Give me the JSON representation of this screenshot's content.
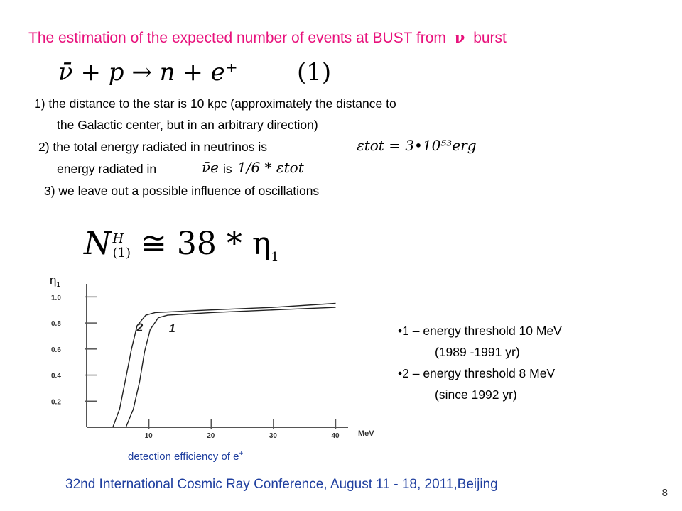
{
  "title": {
    "before": "The estimation of the expected number of events  at BUST from",
    "nu_symbol": "ν",
    "after": "burst"
  },
  "reaction": {
    "formula": "ν̄ + p → n + e⁺",
    "number": "(1)"
  },
  "conditions": {
    "c1_line1": "1) the distance to the star is 10 kpc (approximately the distance to",
    "c1_line2": "the Galactic center, but in an arbitrary direction)",
    "c2_line1": "2) the total energy radiated in  neutrinos is",
    "c2_formula": "εtot = 3•10⁵³erg",
    "c2_line2_prefix": "energy radiated in",
    "c2_nu": "ν̄e",
    "c2_line2_suffix": "is",
    "c2_fraction": "1/6 * εtot",
    "c3": "3) we leave out a possible influence of oscillations"
  },
  "result_formula": {
    "N": "N",
    "sup": "H",
    "sub": "(1)",
    "rest": "≅ 38 * η",
    "eta_sub": "1"
  },
  "chart_data": {
    "type": "line",
    "title": "",
    "ylabel": "η1",
    "xlabel": "MeV",
    "caption": "detection efficiency of e",
    "caption_sup": "+",
    "x_ticks": [
      "10",
      "20",
      "30",
      "40"
    ],
    "y_ticks": [
      "0.2",
      "0.4",
      "0.6",
      "0.8",
      "1.0"
    ],
    "xlim": [
      0,
      42
    ],
    "ylim": [
      0,
      1.1
    ],
    "series": [
      {
        "name": "1",
        "x": [
          6.3,
          7.5,
          8.5,
          9.3,
          10.2,
          11.5,
          13,
          20,
          30,
          40
        ],
        "y": [
          0.0,
          0.14,
          0.35,
          0.58,
          0.75,
          0.84,
          0.86,
          0.88,
          0.9,
          0.92
        ]
      },
      {
        "name": "2",
        "x": [
          4.2,
          5.3,
          6.3,
          7.2,
          8.1,
          9.5,
          11,
          20,
          30,
          40
        ],
        "y": [
          0.0,
          0.14,
          0.38,
          0.6,
          0.78,
          0.86,
          0.88,
          0.9,
          0.92,
          0.95
        ]
      }
    ]
  },
  "legend": {
    "item1_line1": "•1 – energy threshold 10 MeV",
    "item1_line2": "(1989 -1991 yr)",
    "item2_line1": "•2 – energy threshold   8 MeV",
    "item2_line2": "(since  1992 yr)"
  },
  "footer": "32nd International Cosmic Ray Conference, August 11 - 18, 2011,Beijing",
  "page_number": "8"
}
